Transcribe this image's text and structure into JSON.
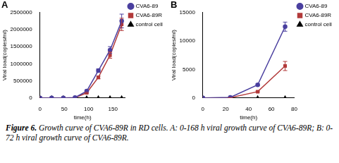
{
  "chart_data": [
    {
      "type": "line",
      "title": "A",
      "x_label": "time(h)",
      "y_label": "Viral load(copies/ml)",
      "x": [
        0,
        24,
        48,
        72,
        96,
        120,
        144,
        168
      ],
      "series": [
        {
          "name": "CVA6-89",
          "color": "#4a3f9f",
          "marker": "circle",
          "line_style": "solid",
          "values": [
            0,
            100,
            2300,
            12500,
            200000,
            800000,
            1400000,
            2250000
          ],
          "errors": [
            0,
            0,
            0,
            0,
            20000,
            50000,
            100000,
            200000
          ]
        },
        {
          "name": "CVA6-89R",
          "color": "#b23a3a",
          "marker": "square",
          "line_style": "solid",
          "values": [
            0,
            50,
            1100,
            5600,
            150000,
            600000,
            1250000,
            2150000
          ],
          "errors": [
            0,
            0,
            0,
            0,
            15000,
            40000,
            90000,
            180000
          ]
        },
        {
          "name": "control cell",
          "color": "#000000",
          "marker": "triangle",
          "line_style": "solid",
          "values": [
            0,
            0,
            0,
            0,
            0,
            0,
            0,
            0
          ],
          "errors": [
            0,
            0,
            0,
            0,
            0,
            0,
            0,
            0
          ]
        }
      ],
      "xlim": [
        0,
        175
      ],
      "xticks": [
        0,
        50,
        100,
        150
      ],
      "ylim": [
        0,
        2500000
      ],
      "yticks": [
        0,
        500000,
        1000000,
        1500000,
        2000000,
        2500000
      ],
      "grid": false,
      "legend": "right"
    },
    {
      "type": "line",
      "title": "B",
      "x_label": "time(h)",
      "y_label": "Viral load(copies/ml)",
      "x": [
        0,
        24,
        48,
        72
      ],
      "series": [
        {
          "name": "CVA6-89",
          "color": "#4a3f9f",
          "marker": "circle",
          "line_style": "solid",
          "values": [
            0,
            100,
            2300,
            12500
          ],
          "errors": [
            0,
            20,
            150,
            800
          ]
        },
        {
          "name": "CVA6-89R",
          "color": "#b23a3a",
          "marker": "square",
          "line_style": "solid",
          "values": [
            0,
            50,
            1100,
            5600
          ],
          "errors": [
            0,
            10,
            100,
            800
          ]
        },
        {
          "name": "control cell",
          "color": "#000000",
          "marker": "triangle",
          "line_style": "solid",
          "values": [
            0,
            0,
            0,
            0
          ],
          "errors": [
            0,
            0,
            0,
            0
          ]
        }
      ],
      "xlim": [
        0,
        80
      ],
      "xticks": [
        0,
        20,
        40,
        60,
        80
      ],
      "ylim": [
        0,
        15000
      ],
      "yticks": [
        0,
        5000,
        10000,
        15000
      ],
      "grid": false,
      "legend": "right"
    }
  ],
  "caption_label": "Figure 6.",
  "caption": "Growth curve of CVA6-89R in RD cells. A: 0-168 h viral growth curve of CVA6-89R; B: 0-72 h viral growth curve of CVA6-89R."
}
